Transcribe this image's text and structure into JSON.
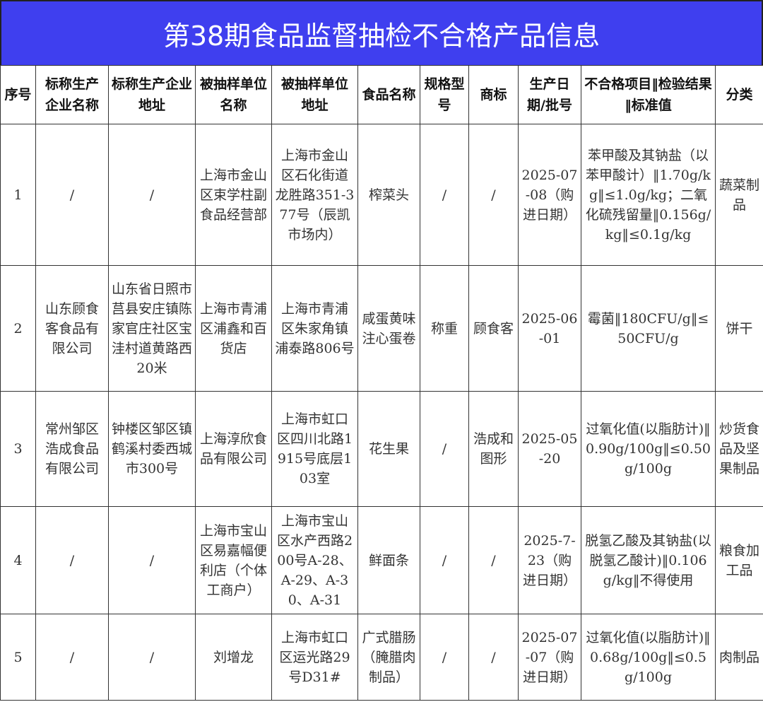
{
  "title": "第38期食品监督抽检不合格产品信息",
  "headers": [
    "序号",
    "标称生产企业名称",
    "标称生产企业地址",
    "被抽样单位名称",
    "被抽样单位地址",
    "食品名称",
    "规格型号",
    "商标",
    "生产日期/批号",
    "不合格项目‖检验结果‖标准值",
    "分类"
  ],
  "rows": [
    [
      "1",
      "/",
      "/",
      "上海市金山区束学柱副食品经营部",
      "上海市金山区石化街道龙胜路351-377号（辰凯市场内）",
      "榨菜头",
      "/",
      "/",
      "2025-07-08（购进日期）",
      "苯甲酸及其钠盐（以苯甲酸计）‖1.70g/kg‖≤1.0g/kg；二氧化硫残留量‖0.156g/kg‖≤0.1g/kg",
      "蔬菜制品"
    ],
    [
      "2",
      "山东顾食客食品有限公司",
      "山东省日照市莒县安庄镇陈家官庄社区宝洼村道黄路西20米",
      "上海市青浦区浦鑫和百货店",
      "上海市青浦区朱家角镇浦泰路806号",
      "咸蛋黄味注心蛋卷",
      "称重",
      "顾食客",
      "2025-06-01",
      "霉菌‖180CFU/g‖≤50CFU/g",
      "饼干"
    ],
    [
      "3",
      "常州邹区浩成食品有限公司",
      "钟楼区邹区镇鹤溪村委西城市300号",
      "上海淳欣食品有限公司",
      "上海市虹口区四川北路1915号底层103室",
      "花生果",
      "/",
      "浩成和图形",
      "2025-05-20",
      "过氧化值(以脂肪计)‖0.90g/100g‖≤0.50g/100g",
      "炒货食品及坚果制品"
    ],
    [
      "4",
      "/",
      "/",
      "上海市宝山区易嘉幅便利店（个体工商户）",
      "上海市宝山区水产西路200号A-28、A-29、A-30、A-31",
      "鲜面条",
      "/",
      "/",
      "2025-7-23（购进日期）",
      "脱氢乙酸及其钠盐(以脱氢乙酸计)‖0.106g/kg‖不得使用",
      "粮食加工品"
    ],
    [
      "5",
      "/",
      "/",
      "刘增龙",
      "上海市虹口区运光路29号D31#",
      "广式腊肠（腌腊肉制品）",
      "/",
      "/",
      "2025-07-07（购进日期）",
      "过氧化值(以脂肪计)‖0.68g/100g‖≤0.5g/100g",
      "肉制品"
    ]
  ]
}
